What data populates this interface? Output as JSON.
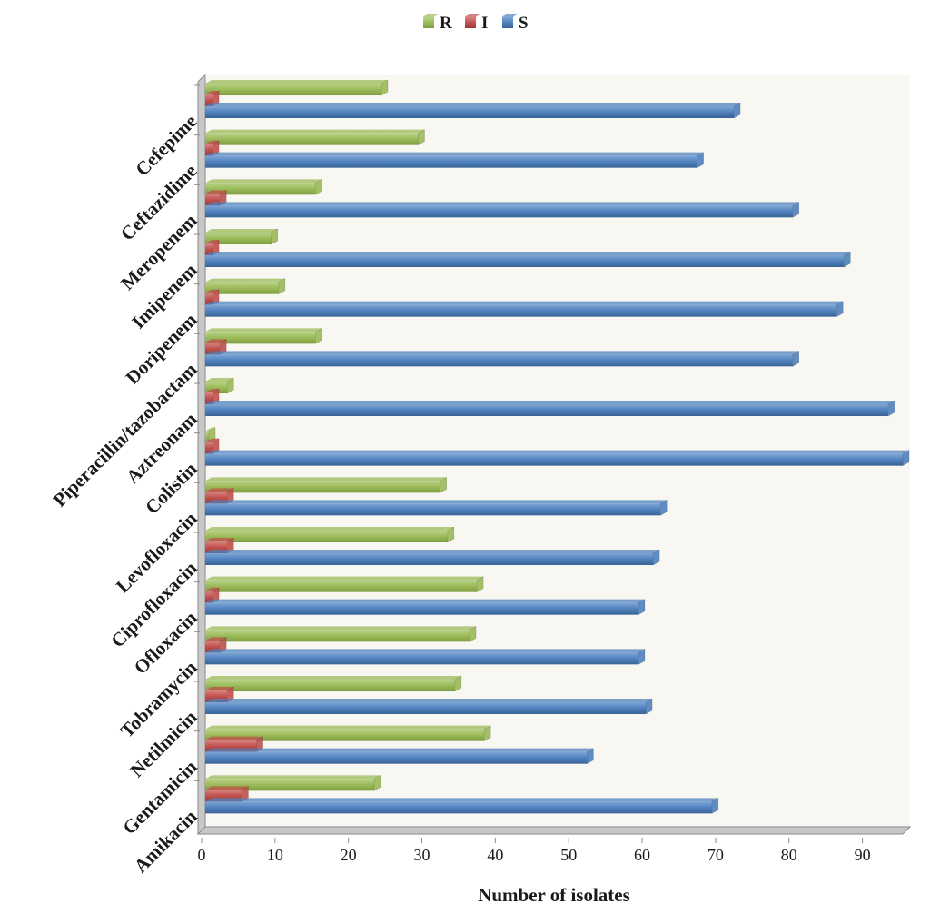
{
  "chart_data": {
    "type": "bar",
    "orientation": "horizontal",
    "xlabel": "Number of isolates",
    "ylabel": "",
    "title": "",
    "xlim": [
      0,
      95
    ],
    "xticks": [
      0,
      10,
      20,
      30,
      40,
      50,
      60,
      70,
      80,
      90
    ],
    "legend_position": "top-center",
    "grid": false,
    "categories": [
      "Cefepime",
      "Ceftazidime",
      "Meropenem",
      "Imipenem",
      "Doripenem",
      "Piperacillin/tazobactam",
      "Aztreonam",
      "Colistin",
      "Levofloxacin",
      "Ciprofloxacin",
      "Ofloxacin",
      "Tobramycin",
      "Netilmicin",
      "Gentamicin",
      "Amikacin"
    ],
    "series": [
      {
        "name": "R",
        "color": "#9bbb59",
        "values": [
          24,
          29,
          15,
          9,
          10,
          15,
          3,
          0.5,
          32,
          33,
          37,
          36,
          34,
          38,
          23
        ]
      },
      {
        "name": "I",
        "color": "#c0504d",
        "values": [
          1,
          1,
          2,
          1,
          1,
          2,
          1,
          1,
          3,
          3,
          1,
          2,
          3,
          7,
          5
        ]
      },
      {
        "name": "S",
        "color": "#4f81bd",
        "values": [
          72,
          67,
          80,
          87,
          86,
          80,
          93,
          95,
          62,
          61,
          59,
          59,
          60,
          52,
          69
        ]
      }
    ]
  }
}
